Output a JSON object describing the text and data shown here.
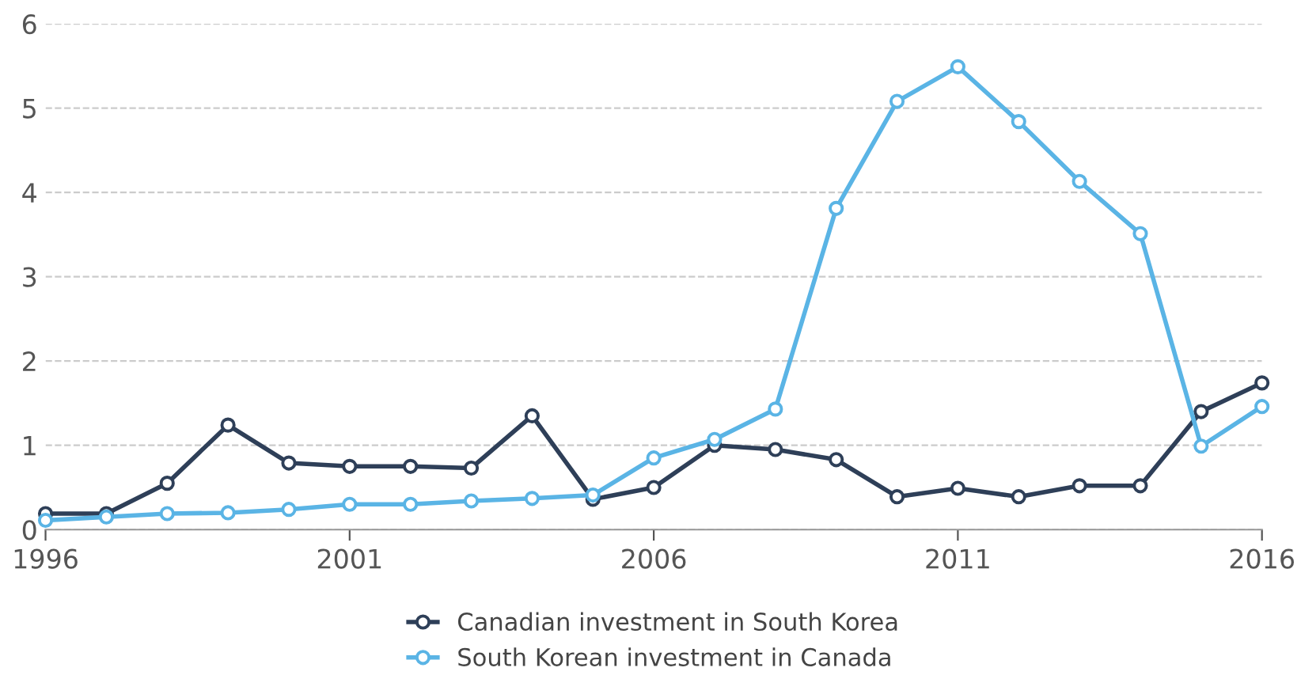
{
  "chart_data": {
    "type": "line",
    "x": [
      1996,
      1997,
      1998,
      1999,
      2000,
      2001,
      2002,
      2003,
      2004,
      2005,
      2006,
      2007,
      2008,
      2009,
      2010,
      2011,
      2012,
      2013,
      2014,
      2015,
      2016
    ],
    "series": [
      {
        "name": "Canadian investment in South Korea",
        "color": "#2e3f58",
        "values": [
          0.19,
          0.19,
          0.55,
          1.24,
          0.79,
          0.75,
          0.75,
          0.73,
          1.35,
          0.36,
          0.5,
          1.0,
          0.95,
          0.83,
          0.39,
          0.49,
          0.39,
          0.52,
          0.52,
          1.4,
          1.74
        ]
      },
      {
        "name": "South Korean investment in Canada",
        "color": "#5ab4e5",
        "values": [
          0.11,
          0.15,
          0.19,
          0.2,
          0.24,
          0.3,
          0.3,
          0.34,
          0.37,
          0.41,
          0.85,
          1.07,
          1.43,
          3.81,
          5.08,
          5.49,
          4.84,
          4.13,
          3.51,
          0.99,
          1.46
        ]
      }
    ],
    "xlim": [
      1996,
      2016
    ],
    "xticks": [
      1996,
      2001,
      2006,
      2011,
      2016
    ],
    "ylim": [
      0,
      6
    ],
    "yticks": [
      0,
      1,
      2,
      3,
      4,
      5,
      6
    ],
    "grid": "y",
    "legend": "bottom",
    "marker": "circle",
    "line_style": "solid"
  }
}
